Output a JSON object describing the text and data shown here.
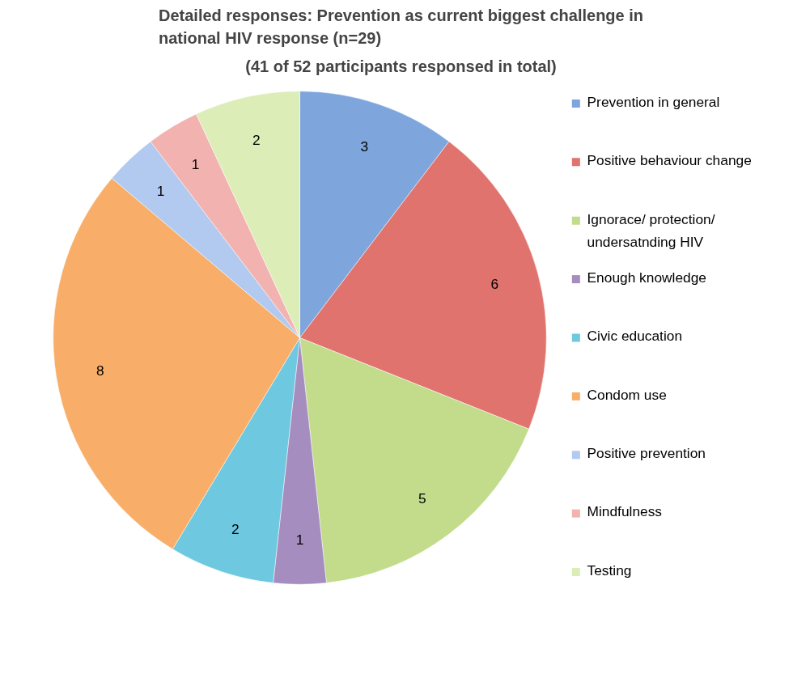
{
  "chart_data": {
    "type": "pie",
    "title": "Detailed responses: Prevention as current biggest challenge in national HIV response (n=29)",
    "subtitle": "(41 of 52 participants responsed in total)",
    "categories": [
      "Prevention in general",
      "Positive behaviour change",
      "Ignorace/ protection/ undersatnding HIV",
      "Enough knowledge",
      "Civic education",
      "Condom use",
      "Positive prevention",
      "Mindfulness",
      "Testing"
    ],
    "values": [
      3,
      6,
      5,
      1,
      2,
      8,
      1,
      1,
      2
    ],
    "colors": [
      "#7ea6dc",
      "#e0736d",
      "#c2dc8c",
      "#a58dc0",
      "#6dc8e0",
      "#f8ae68",
      "#b2c9f0",
      "#f2b2b0",
      "#dcedb8"
    ],
    "data_labels": true,
    "legend": "right"
  }
}
